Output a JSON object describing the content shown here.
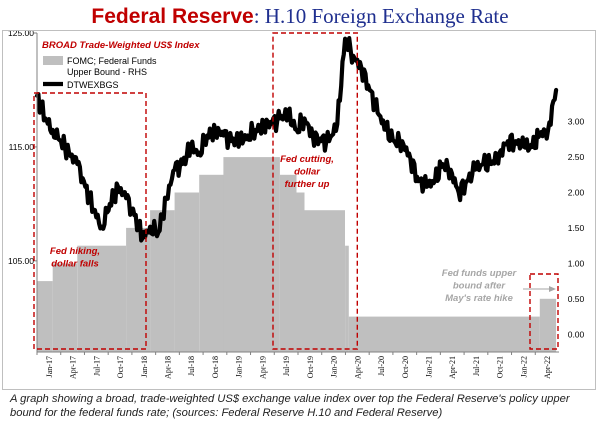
{
  "title": {
    "part1": "Federal Reserve",
    "part2": ": H.10 Foreign Exchange Rate"
  },
  "caption": "A graph showing a broad, trade-weighted US$ exchange value index over top the Federal Reserve's policy upper bound for the federal funds rate; (sources: Federal Reserve H.10 and Federal Reserve)",
  "colors": {
    "title_red": "#c00000",
    "title_blue": "#1f2f8f",
    "index_line": "#000000",
    "fed_funds_area": "#bfbfbf",
    "annotation_red": "#c00000",
    "annotation_gray": "#a6a6a6"
  },
  "chart_data": {
    "type": "line",
    "x_tick_labels": [
      "Jan-17",
      "Apr-17",
      "Jul-17",
      "Oct-17",
      "Jan-18",
      "Apr-18",
      "Jul-18",
      "Oct-18",
      "Jan-19",
      "Apr-19",
      "Jul-19",
      "Oct-19",
      "Jan-20",
      "Apr-20",
      "Jul-20",
      "Oct-20",
      "Jan-21",
      "Apr-21",
      "Jul-21",
      "Oct-21",
      "Jan-22",
      "Apr-22"
    ],
    "y_left": {
      "range": [
        97,
        125
      ],
      "ticks": [
        "105.00",
        "115.00",
        "125.00"
      ]
    },
    "y_right": {
      "range": [
        -0.25,
        4.25
      ],
      "ticks": [
        "0.00",
        "0.50",
        "1.00",
        "1.50",
        "2.00",
        "2.50",
        "3.00"
      ]
    },
    "grid": false,
    "legend": {
      "title": "BROAD Trade-Weighted US$ Index",
      "entries": [
        "FOMC; Federal Funds Upper Bound - RHS",
        "DTWEXBGS"
      ],
      "placement": "top-left"
    },
    "series": [
      {
        "name": "FOMC; Federal Funds Upper Bound - RHS",
        "type": "area",
        "axis": "right",
        "steps": [
          {
            "from": "2017-01",
            "to": "2017-03",
            "value": 0.75
          },
          {
            "from": "2017-03",
            "to": "2017-06",
            "value": 1.0
          },
          {
            "from": "2017-06",
            "to": "2017-12",
            "value": 1.25
          },
          {
            "from": "2017-12",
            "to": "2018-03",
            "value": 1.5
          },
          {
            "from": "2018-03",
            "to": "2018-06",
            "value": 1.75
          },
          {
            "from": "2018-06",
            "to": "2018-09",
            "value": 2.0
          },
          {
            "from": "2018-09",
            "to": "2018-12",
            "value": 2.25
          },
          {
            "from": "2018-12",
            "to": "2019-07",
            "value": 2.5
          },
          {
            "from": "2019-07",
            "to": "2019-09",
            "value": 2.25
          },
          {
            "from": "2019-09",
            "to": "2019-10",
            "value": 2.0
          },
          {
            "from": "2019-10",
            "to": "2020-03",
            "value": 1.75
          },
          {
            "from": "2020-03",
            "to": "2020-03-15",
            "value": 1.25
          },
          {
            "from": "2020-03-15",
            "to": "2022-03",
            "value": 0.25
          },
          {
            "from": "2022-03",
            "to": "2022-05",
            "value": 0.5
          }
        ]
      },
      {
        "name": "DTWEXBGS",
        "type": "line",
        "axis": "left",
        "points": [
          [
            "2017-01",
            119.5
          ],
          [
            "2017-02",
            117.5
          ],
          [
            "2017-03",
            116.5
          ],
          [
            "2017-04",
            115.5
          ],
          [
            "2017-05",
            114.5
          ],
          [
            "2017-06",
            113.5
          ],
          [
            "2017-07",
            111.5
          ],
          [
            "2017-08",
            109.5
          ],
          [
            "2017-09",
            108.0
          ],
          [
            "2017-10",
            110.0
          ],
          [
            "2017-11",
            111.5
          ],
          [
            "2017-12",
            110.5
          ],
          [
            "2018-01",
            109.0
          ],
          [
            "2018-02",
            107.0
          ],
          [
            "2018-03",
            108.0
          ],
          [
            "2018-04",
            107.5
          ],
          [
            "2018-05",
            110.5
          ],
          [
            "2018-06",
            113.0
          ],
          [
            "2018-07",
            113.5
          ],
          [
            "2018-08",
            115.0
          ],
          [
            "2018-09",
            114.5
          ],
          [
            "2018-10",
            116.0
          ],
          [
            "2018-11",
            116.5
          ],
          [
            "2018-12",
            116.0
          ],
          [
            "2019-01",
            115.5
          ],
          [
            "2019-02",
            115.5
          ],
          [
            "2019-03",
            116.0
          ],
          [
            "2019-04",
            116.5
          ],
          [
            "2019-05",
            117.0
          ],
          [
            "2019-06",
            117.0
          ],
          [
            "2019-07",
            117.5
          ],
          [
            "2019-08",
            117.8
          ],
          [
            "2019-09",
            116.5
          ],
          [
            "2019-10",
            117.5
          ],
          [
            "2019-11",
            116.0
          ],
          [
            "2019-12",
            115.5
          ],
          [
            "2020-01",
            115.5
          ],
          [
            "2020-02",
            117.0
          ],
          [
            "2020-03",
            124.5
          ],
          [
            "2020-04",
            123.0
          ],
          [
            "2020-05",
            122.0
          ],
          [
            "2020-06",
            120.0
          ],
          [
            "2020-07",
            118.0
          ],
          [
            "2020-08",
            116.5
          ],
          [
            "2020-09",
            115.5
          ],
          [
            "2020-10",
            115.5
          ],
          [
            "2020-11",
            114.0
          ],
          [
            "2020-12",
            112.0
          ],
          [
            "2021-01",
            111.5
          ],
          [
            "2021-02",
            112.0
          ],
          [
            "2021-03",
            113.5
          ],
          [
            "2021-04",
            113.0
          ],
          [
            "2021-05",
            111.0
          ],
          [
            "2021-06",
            112.0
          ],
          [
            "2021-07",
            113.0
          ],
          [
            "2021-08",
            113.5
          ],
          [
            "2021-09",
            113.5
          ],
          [
            "2021-10",
            114.5
          ],
          [
            "2021-11",
            115.5
          ],
          [
            "2021-12",
            115.5
          ],
          [
            "2022-01",
            115.0
          ],
          [
            "2022-02",
            115.0
          ],
          [
            "2022-03",
            116.0
          ],
          [
            "2022-04",
            116.5
          ],
          [
            "2022-05",
            120.0
          ]
        ]
      }
    ],
    "annotations": [
      {
        "text": "Fed hiking, dollar falls",
        "lines": [
          "Fed hiking,",
          "dollar falls"
        ],
        "color": "red"
      },
      {
        "text": "Fed cutting, dollar further up",
        "lines": [
          "Fed cutting,",
          "dollar",
          "further up"
        ],
        "color": "red"
      },
      {
        "text": "Fed funds upper bound after May's rate hike",
        "lines": [
          "Fed funds upper",
          "bound after",
          "May's rate hike"
        ],
        "color": "gray"
      }
    ],
    "highlight_periods": [
      {
        "from": "2017-01",
        "to": "2018-03"
      },
      {
        "from": "2019-07",
        "to": "2020-04"
      },
      {
        "from": "2022-02",
        "to": "2022-05"
      }
    ]
  }
}
